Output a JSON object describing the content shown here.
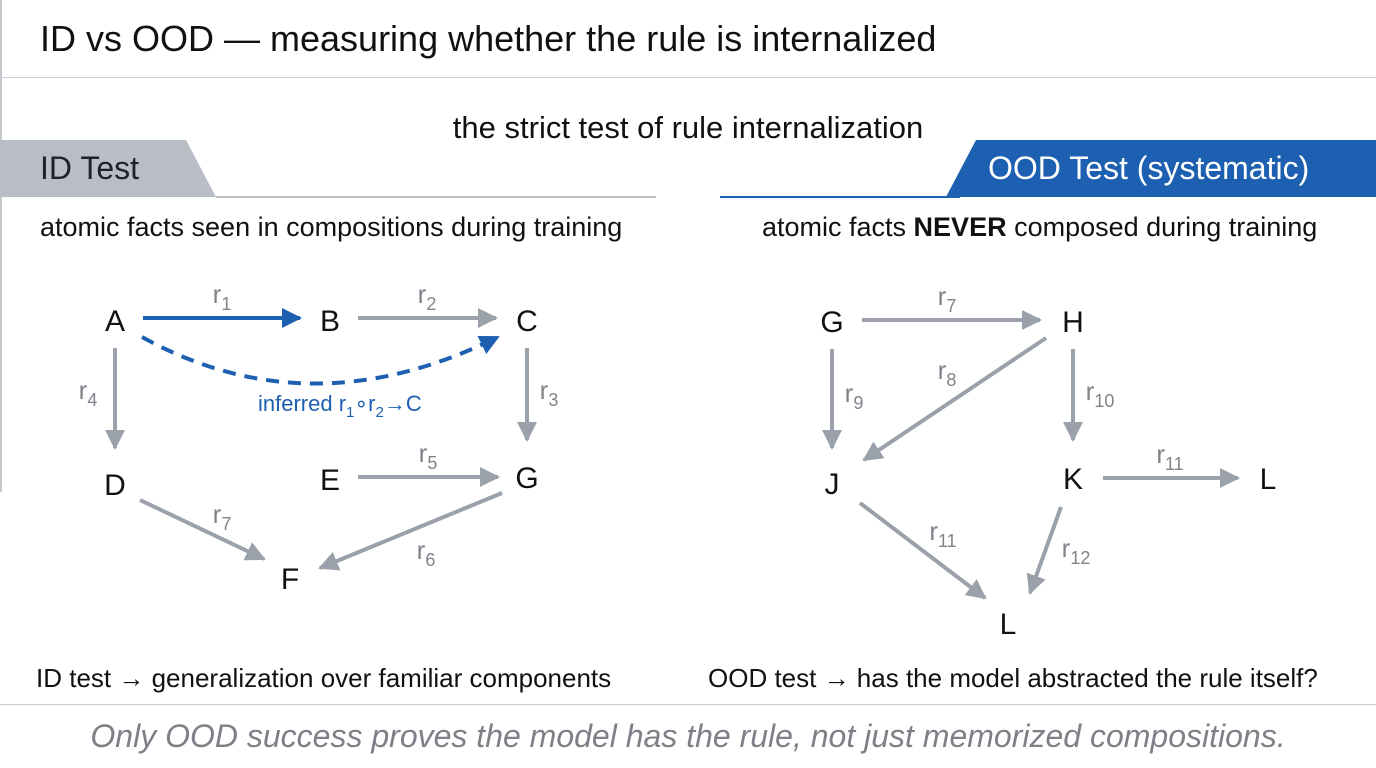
{
  "title": "ID vs OOD — measuring whether the rule is internalized",
  "subtitle": "the strict test of rule internalization",
  "colors": {
    "accent": "#1d5fb0",
    "edge_gray": "#9aa1aa",
    "tag_gray": "#b9bec6",
    "muted_text": "#7d8187"
  },
  "id_panel": {
    "tag": "ID Test",
    "caption": "atomic facts seen in compositions during training",
    "footnote": "ID test → generalization over familiar components",
    "nodes": [
      "A",
      "B",
      "C",
      "D",
      "E",
      "G",
      "F"
    ],
    "edges": [
      {
        "from": "A",
        "to": "B",
        "rel": "r",
        "sub": "1",
        "style": "solid-blue"
      },
      {
        "from": "B",
        "to": "C",
        "rel": "r",
        "sub": "2",
        "style": "gray"
      },
      {
        "from": "A",
        "to": "D",
        "rel": "r",
        "sub": "4",
        "style": "gray"
      },
      {
        "from": "C",
        "to": "G",
        "rel": "r",
        "sub": "3",
        "style": "gray"
      },
      {
        "from": "E",
        "to": "G",
        "rel": "r",
        "sub": "5",
        "style": "gray"
      },
      {
        "from": "D",
        "to": "F",
        "rel": "r",
        "sub": "7",
        "style": "gray"
      },
      {
        "from": "G",
        "to": "F",
        "rel": "r",
        "sub": "6",
        "style": "gray"
      },
      {
        "from": "A",
        "to": "C",
        "style": "dashed-blue"
      }
    ],
    "inferred_label": {
      "prefix": "inferred r",
      "sub1": "1",
      "mid": "∘r",
      "sub2": "2",
      "suffix": "→C"
    }
  },
  "ood_panel": {
    "tag": "OOD Test (systematic)",
    "caption_pre": "atomic facts ",
    "caption_em": "NEVER",
    "caption_post": " composed during training",
    "footnote": "OOD test → has the model abstracted the rule itself?",
    "nodes": [
      "G",
      "H",
      "J",
      "K",
      "L",
      "L"
    ],
    "edges": [
      {
        "from": "G",
        "to": "H",
        "rel": "r",
        "sub": "7"
      },
      {
        "from": "H",
        "to": "J",
        "rel": "r",
        "sub": "8"
      },
      {
        "from": "G",
        "to": "J",
        "rel": "r",
        "sub": "9"
      },
      {
        "from": "H",
        "to": "K",
        "rel": "r",
        "sub": "10"
      },
      {
        "from": "K",
        "to": "L",
        "rel": "r",
        "sub": "11"
      },
      {
        "from": "J",
        "to": "L",
        "rel": "r",
        "sub": "11"
      },
      {
        "from": "K",
        "to": "L",
        "rel": "r",
        "sub": "12"
      }
    ]
  },
  "conclusion": "Only OOD success proves the model has the rule, not just memorized compositions."
}
